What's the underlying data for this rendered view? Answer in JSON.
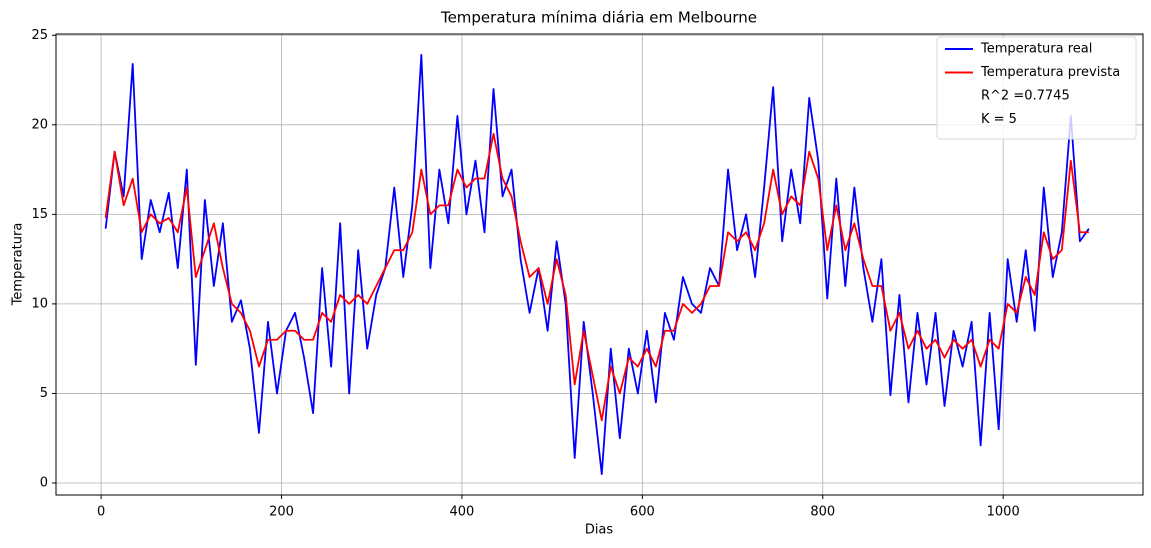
{
  "chart_data": {
    "type": "line",
    "title": "Temperatura mínima diária em Melbourne",
    "xlabel": "Dias",
    "ylabel": "Temperatura",
    "x": [
      5,
      15,
      25,
      35,
      45,
      55,
      65,
      75,
      85,
      95,
      105,
      115,
      125,
      135,
      145,
      155,
      165,
      175,
      185,
      195,
      205,
      215,
      225,
      235,
      245,
      255,
      265,
      275,
      285,
      295,
      305,
      315,
      325,
      335,
      345,
      355,
      365,
      375,
      385,
      395,
      405,
      415,
      425,
      435,
      445,
      455,
      465,
      475,
      485,
      495,
      505,
      515,
      525,
      535,
      545,
      555,
      565,
      575,
      585,
      595,
      605,
      615,
      625,
      635,
      645,
      655,
      665,
      675,
      685,
      695,
      705,
      715,
      725,
      735,
      745,
      755,
      765,
      775,
      785,
      795,
      805,
      815,
      825,
      835,
      845,
      855,
      865,
      875,
      885,
      895,
      905,
      915,
      925,
      935,
      945,
      955,
      965,
      975,
      985,
      995,
      1005,
      1015,
      1025,
      1035,
      1045,
      1055,
      1065,
      1075,
      1085,
      1095
    ],
    "series": [
      {
        "name": "Temperatura real",
        "color": "#0000ff",
        "values": [
          14.2,
          18.5,
          16.0,
          23.4,
          12.5,
          15.8,
          14.0,
          16.2,
          12.0,
          17.5,
          6.6,
          15.8,
          11.0,
          14.5,
          9.0,
          10.2,
          7.5,
          2.8,
          9.0,
          5.0,
          8.5,
          9.5,
          7.0,
          3.9,
          12.0,
          6.5,
          14.5,
          5.0,
          13.0,
          7.5,
          10.5,
          12.0,
          16.5,
          11.5,
          15.5,
          23.9,
          12.0,
          17.5,
          14.5,
          20.5,
          15.0,
          18.0,
          14.0,
          22.0,
          16.0,
          17.5,
          12.5,
          9.5,
          12.0,
          8.5,
          13.5,
          10.0,
          1.4,
          9.0,
          5.0,
          0.5,
          7.5,
          2.5,
          7.5,
          5.0,
          8.5,
          4.5,
          9.5,
          8.0,
          11.5,
          10.0,
          9.5,
          12.0,
          11.0,
          17.5,
          13.0,
          15.0,
          11.5,
          16.5,
          22.1,
          13.5,
          17.5,
          14.5,
          21.5,
          18.0,
          10.3,
          17.0,
          11.0,
          16.5,
          12.0,
          9.0,
          12.5,
          4.9,
          10.5,
          4.5,
          9.5,
          5.5,
          9.5,
          4.3,
          8.5,
          6.5,
          9.0,
          2.1,
          9.5,
          3.0,
          12.5,
          9.0,
          13.0,
          8.5,
          16.5,
          11.5,
          14.0,
          20.5,
          13.5,
          14.2
        ]
      },
      {
        "name": "Temperatura prevista",
        "color": "#ff0000",
        "values": [
          14.8,
          18.5,
          15.5,
          17.0,
          14.0,
          15.0,
          14.5,
          14.8,
          14.0,
          16.5,
          11.5,
          13.0,
          14.5,
          12.0,
          10.0,
          9.5,
          8.5,
          6.5,
          8.0,
          8.0,
          8.5,
          8.5,
          8.0,
          8.0,
          9.5,
          9.0,
          10.5,
          10.0,
          10.5,
          10.0,
          11.0,
          12.0,
          13.0,
          13.0,
          14.0,
          17.5,
          15.0,
          15.5,
          15.5,
          17.5,
          16.5,
          17.0,
          17.0,
          19.5,
          17.0,
          16.0,
          13.5,
          11.5,
          12.0,
          10.0,
          12.5,
          10.5,
          5.5,
          8.5,
          6.0,
          3.5,
          6.5,
          5.0,
          7.0,
          6.5,
          7.5,
          6.5,
          8.5,
          8.5,
          10.0,
          9.5,
          10.0,
          11.0,
          11.0,
          14.0,
          13.5,
          14.0,
          13.0,
          14.5,
          17.5,
          15.0,
          16.0,
          15.5,
          18.5,
          17.0,
          13.0,
          15.5,
          13.0,
          14.5,
          12.5,
          11.0,
          11.0,
          8.5,
          9.5,
          7.5,
          8.5,
          7.5,
          8.0,
          7.0,
          8.0,
          7.5,
          8.0,
          6.5,
          8.0,
          7.5,
          10.0,
          9.5,
          11.5,
          10.5,
          14.0,
          12.5,
          13.0,
          18.0,
          14.0,
          14.0
        ]
      }
    ],
    "legend_notes": [
      "R^2 =0.7745",
      "K = 5"
    ],
    "legend": "upper right",
    "xlim": [
      -50,
      1155
    ],
    "ylim": [
      -0.67,
      25.07
    ],
    "xticks": [
      0,
      200,
      400,
      600,
      800,
      1000
    ],
    "yticks": [
      0,
      5,
      10,
      15,
      20,
      25
    ],
    "grid": true
  }
}
